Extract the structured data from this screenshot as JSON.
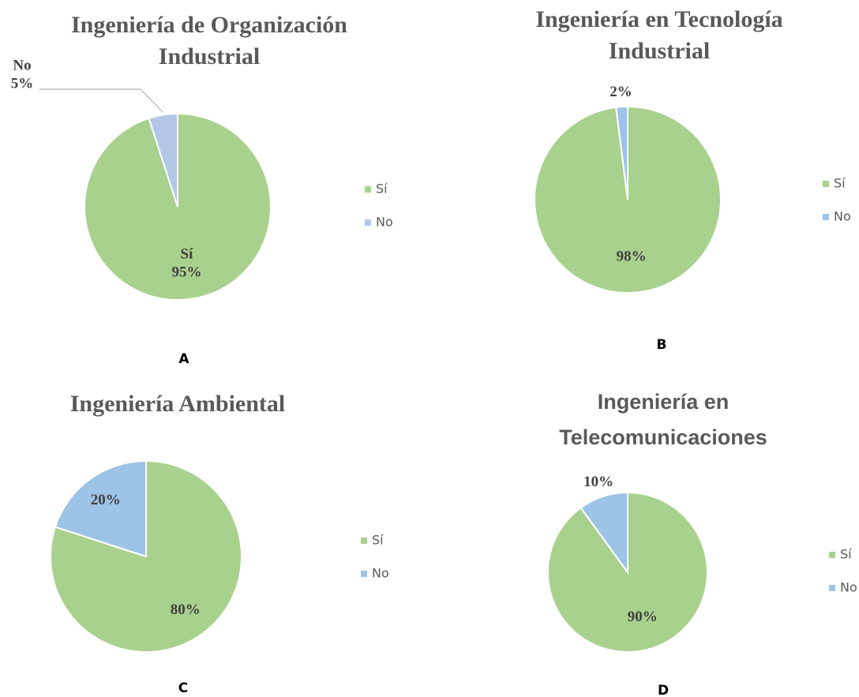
{
  "chart_data": [
    {
      "type": "pie",
      "title": "Ingeniería de Organización Industrial",
      "title_font": "serif",
      "caption": "A",
      "categories": [
        "Sí",
        "No"
      ],
      "values": [
        95,
        5
      ],
      "value_labels": [
        "95%",
        "5%"
      ],
      "colors": [
        "#a9d18e",
        "#b4c7e7"
      ],
      "data_labels": "category_and_value",
      "legend": "right"
    },
    {
      "type": "pie",
      "title": "Ingeniería en Tecnología Industrial",
      "title_font": "serif",
      "caption": "B",
      "categories": [
        "Sí",
        "No"
      ],
      "values": [
        98,
        2
      ],
      "value_labels": [
        "98%",
        "2%"
      ],
      "colors": [
        "#a9d18e",
        "#9dc3e6"
      ],
      "data_labels": "value",
      "legend": "right"
    },
    {
      "type": "pie",
      "title": "Ingeniería Ambiental",
      "title_font": "serif",
      "caption": "C",
      "categories": [
        "Sí",
        "No"
      ],
      "values": [
        80,
        20
      ],
      "value_labels": [
        "80%",
        "20%"
      ],
      "colors": [
        "#a9d18e",
        "#9dc3e6"
      ],
      "data_labels": "value",
      "legend": "right"
    },
    {
      "type": "pie",
      "title": "Ingeniería en Telecomunicaciones",
      "title_font": "sans",
      "caption": "D",
      "categories": [
        "Sí",
        "No"
      ],
      "values": [
        90,
        10
      ],
      "value_labels": [
        "90%",
        "10%"
      ],
      "colors": [
        "#a9d18e",
        "#9dc3e6"
      ],
      "data_labels": "value",
      "legend": "right"
    }
  ]
}
